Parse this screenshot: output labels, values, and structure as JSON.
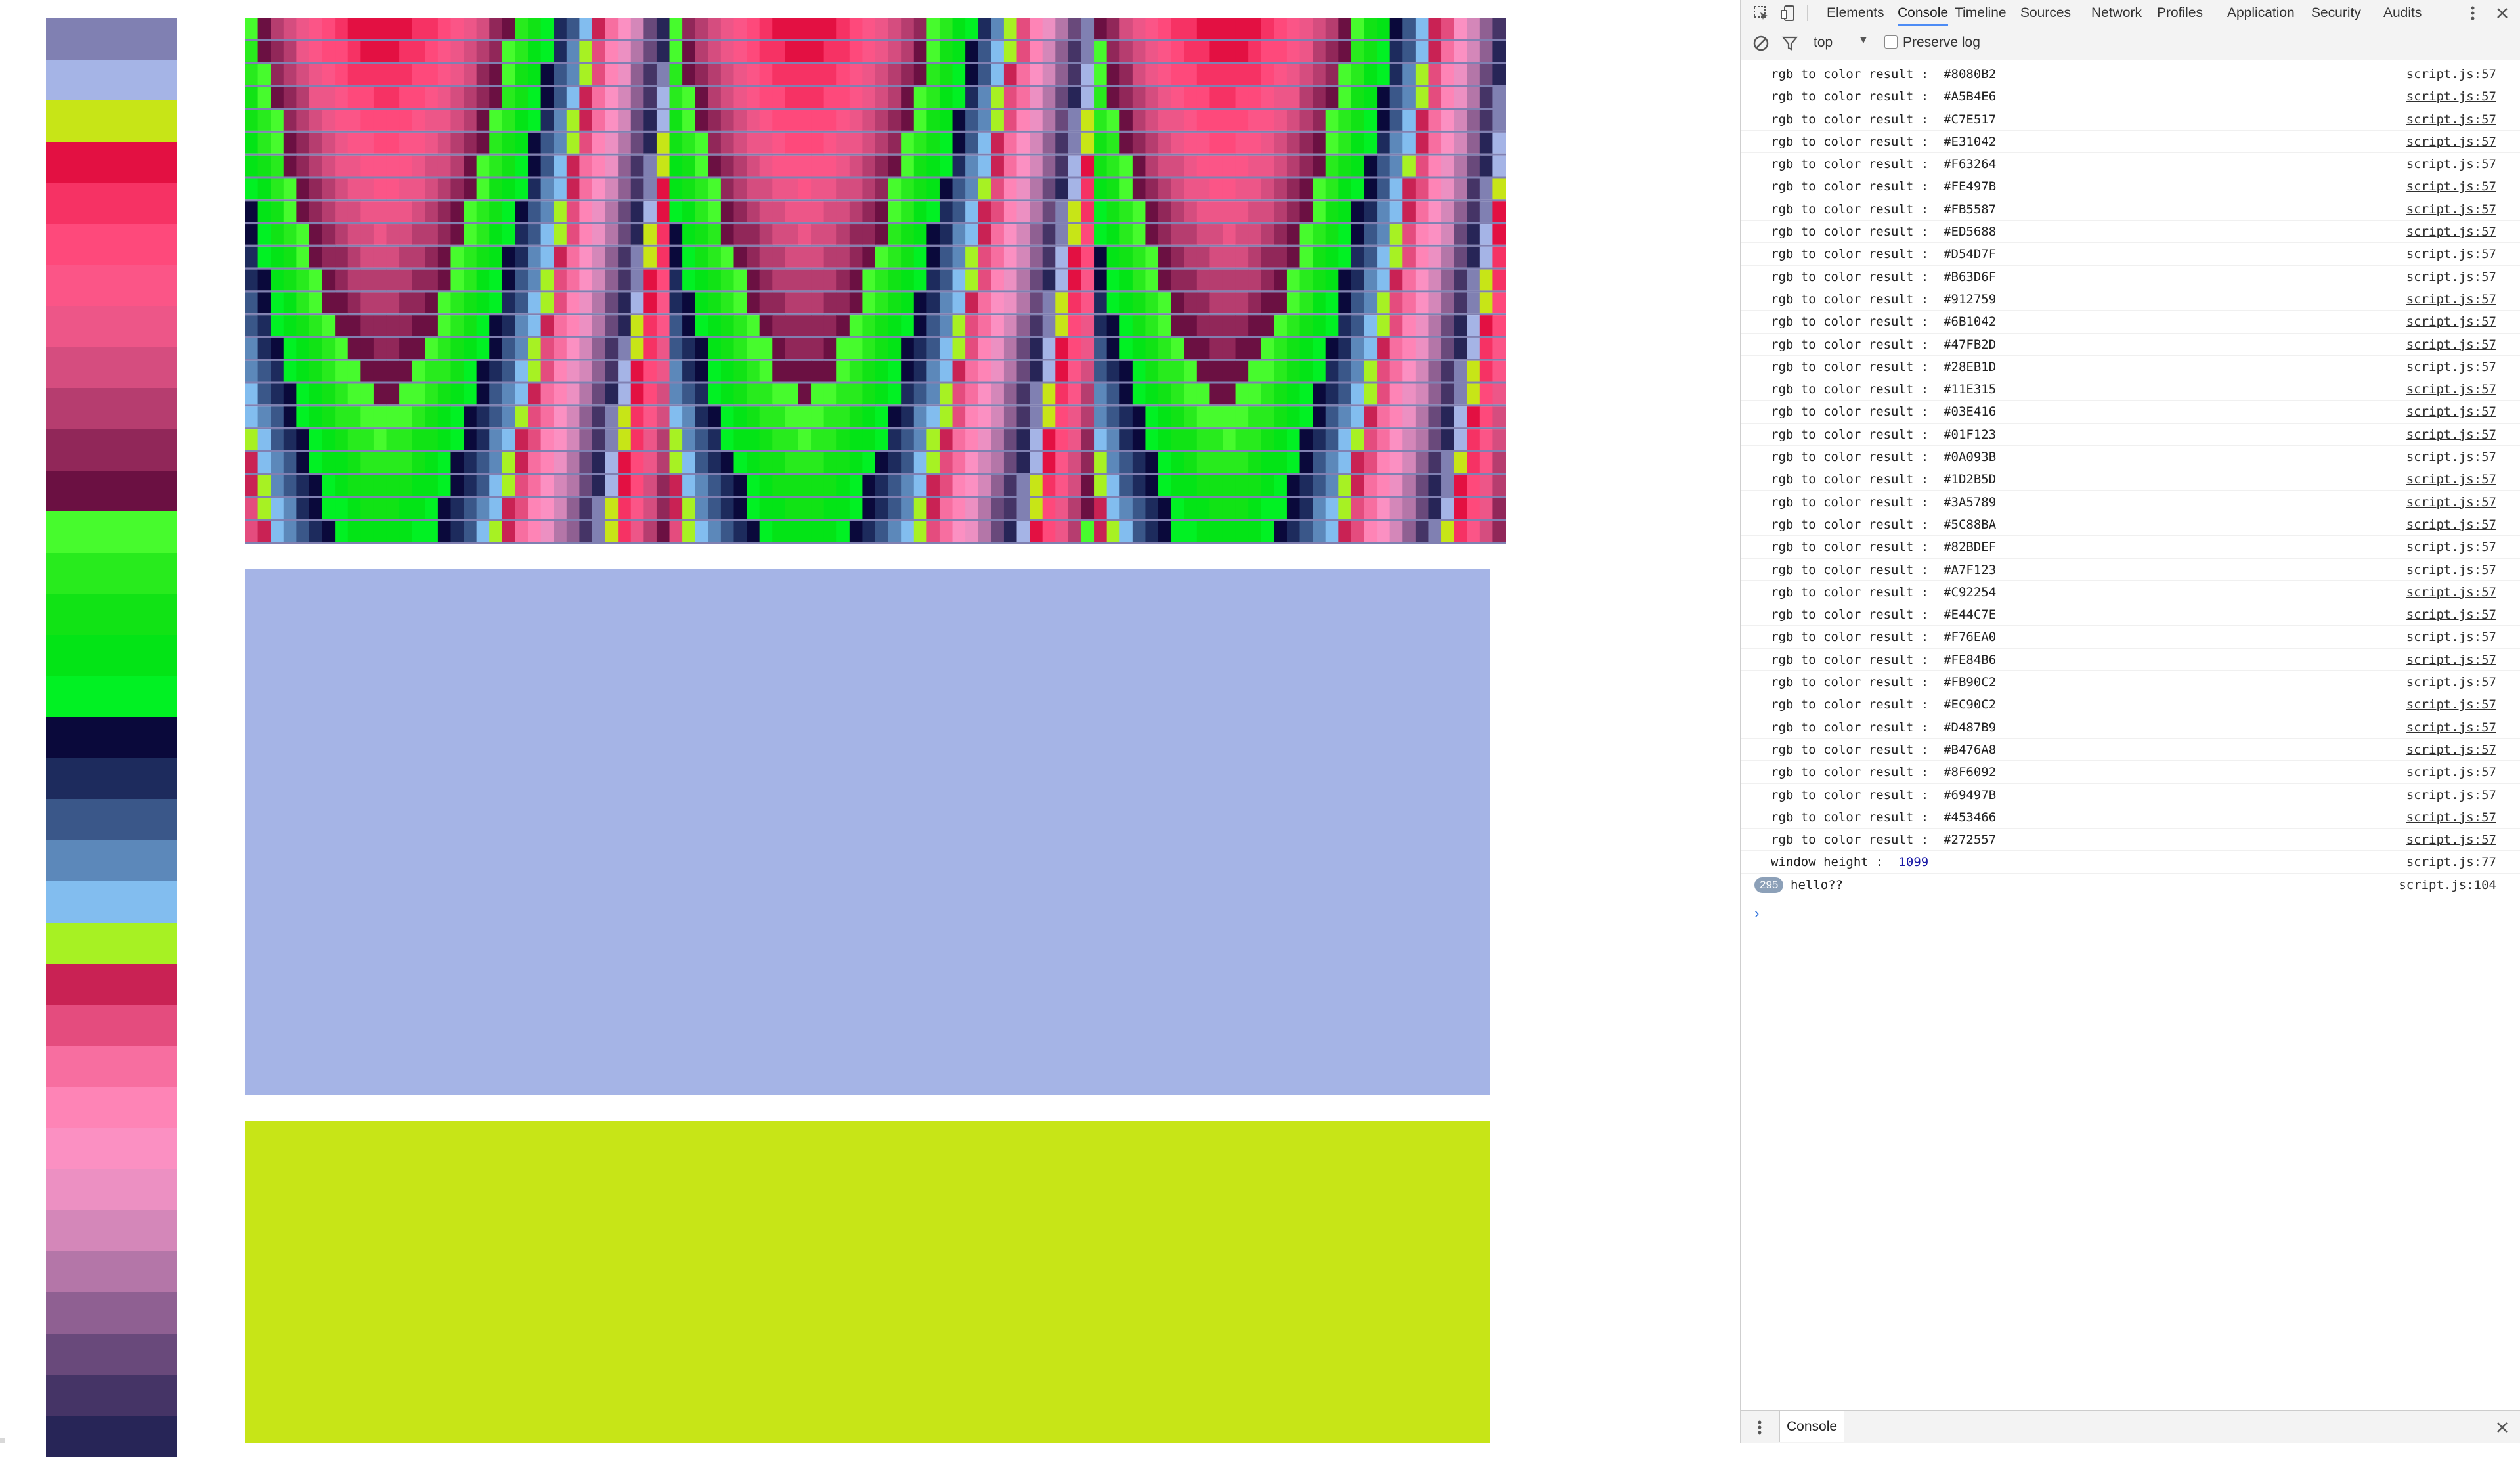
{
  "swatches": [
    "#8080B2",
    "#A5B4E6",
    "#C7E517",
    "#E31042",
    "#F63264",
    "#FE497B",
    "#FB5587",
    "#ED5688",
    "#D54D7F",
    "#B63D6F",
    "#912759",
    "#6B1042",
    "#47FB2D",
    "#28EB1D",
    "#11E315",
    "#03E416",
    "#01F123",
    "#0A093B",
    "#1D2B5D",
    "#3A5789",
    "#5C88BA",
    "#82BDEF",
    "#A7F123",
    "#C92254",
    "#E44C7E",
    "#F76EA0",
    "#FE84B6",
    "#FB90C2",
    "#EC90C2",
    "#D487B9",
    "#B476A8",
    "#8F6092",
    "#69497B",
    "#453466",
    "#272557"
  ],
  "blocks": {
    "blue": "#A5B4E6",
    "lime": "#C7E517"
  },
  "devtools": {
    "tabs": [
      "Elements",
      "Console",
      "Timeline",
      "Sources",
      "Network",
      "Profiles",
      "Application",
      "Security",
      "Audits"
    ],
    "active_tab": "Console",
    "context": "top",
    "preserve_log_label": "Preserve log",
    "log_prefix": "rgb to color result :",
    "log_source": "script.js:57",
    "logs": [
      "#8080B2",
      "#A5B4E6",
      "#C7E517",
      "#E31042",
      "#F63264",
      "#FE497B",
      "#FB5587",
      "#ED5688",
      "#D54D7F",
      "#B63D6F",
      "#912759",
      "#6B1042",
      "#47FB2D",
      "#28EB1D",
      "#11E315",
      "#03E416",
      "#01F123",
      "#0A093B",
      "#1D2B5D",
      "#3A5789",
      "#5C88BA",
      "#82BDEF",
      "#A7F123",
      "#C92254",
      "#E44C7E",
      "#F76EA0",
      "#FE84B6",
      "#FB90C2",
      "#EC90C2",
      "#D487B9",
      "#B476A8",
      "#8F6092",
      "#69497B",
      "#453466",
      "#272557"
    ],
    "height_label": "window height :",
    "height_value": "1099",
    "height_source": "script.js:77",
    "repeat_count": "295",
    "hello_text": "hello??",
    "hello_source": "script.js:104",
    "prompt_symbol": "›",
    "drawer_tab": "Console",
    "accent": "#4D8CF5"
  }
}
